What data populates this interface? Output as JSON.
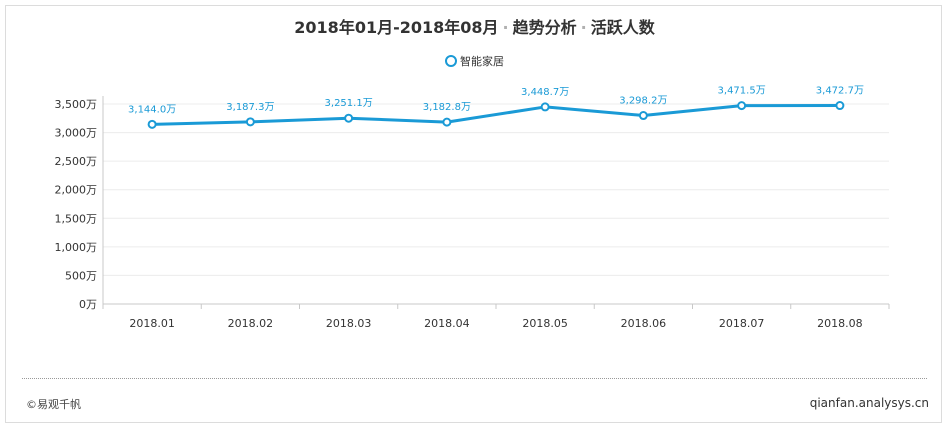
{
  "header": {
    "date_range": "2018年01月-2018年08月",
    "section": "趋势分析",
    "metric": "活跃人数",
    "separator": "·"
  },
  "footer": {
    "copyright": "©易观千帆",
    "site": "qianfan.analysys.cn"
  },
  "chart_data": {
    "type": "line",
    "title": "2018年01月-2018年08月 · 趋势分析 · 活跃人数",
    "categories": [
      "2018.01",
      "2018.02",
      "2018.03",
      "2018.04",
      "2018.05",
      "2018.06",
      "2018.07",
      "2018.08"
    ],
    "series": [
      {
        "name": "智能家居",
        "values": [
          3144.0,
          3187.3,
          3251.1,
          3182.8,
          3448.7,
          3298.2,
          3471.5,
          3472.7
        ],
        "labels": [
          "3,144.0万",
          "3,187.3万",
          "3,251.1万",
          "3,182.8万",
          "3,448.7万",
          "3,298.2万",
          "3,471.5万",
          "3,472.7万"
        ],
        "color": "#1a9ad6"
      }
    ],
    "ylim": [
      0,
      3500
    ],
    "y_ticks": [
      0,
      500,
      1000,
      1500,
      2000,
      2500,
      3000,
      3500
    ],
    "y_tick_labels": [
      "0万",
      "500万",
      "1,000万",
      "1,500万",
      "2,000万",
      "2,500万",
      "3,000万",
      "3,500万"
    ],
    "grid": true,
    "legend_position": "top-center"
  }
}
